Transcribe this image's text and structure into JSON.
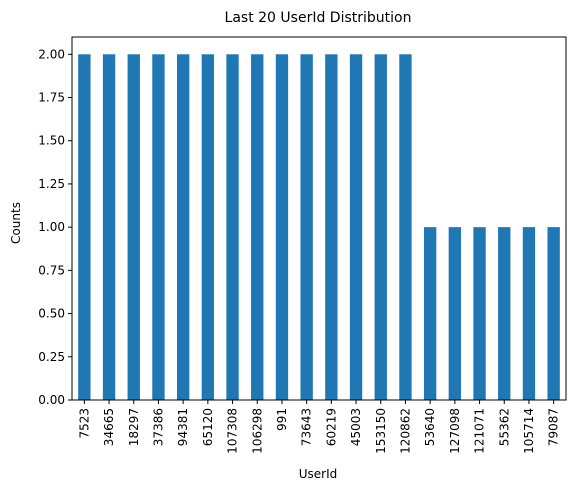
{
  "chart_data": {
    "type": "bar",
    "title": "Last 20 UserId Distribution",
    "xlabel": "UserId",
    "ylabel": "Counts",
    "categories": [
      "7523",
      "34665",
      "18297",
      "37386",
      "94381",
      "65120",
      "107308",
      "106298",
      "991",
      "73643",
      "60219",
      "45003",
      "153150",
      "120862",
      "53640",
      "127098",
      "121071",
      "55362",
      "105714",
      "79087"
    ],
    "values": [
      2,
      2,
      2,
      2,
      2,
      2,
      2,
      2,
      2,
      2,
      2,
      2,
      2,
      2,
      1,
      1,
      1,
      1,
      1,
      1
    ],
    "ylim": [
      0,
      2.1
    ],
    "yticks": [
      "0.00",
      "0.25",
      "0.50",
      "0.75",
      "1.00",
      "1.25",
      "1.50",
      "1.75",
      "2.00"
    ],
    "grid": false,
    "legend": "none",
    "bar_color": "#1f77b4"
  }
}
